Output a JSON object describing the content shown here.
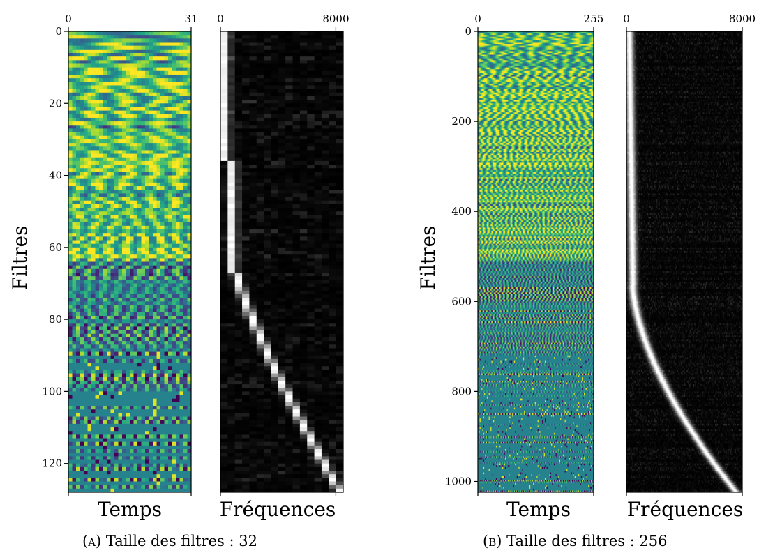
{
  "chart_data": [
    {
      "type": "heatmap",
      "panel": "a",
      "caption_label": "(a)",
      "caption_text": "Taille des filtres : 32",
      "ylabel": "Filtres",
      "y_ticks": [
        0,
        20,
        40,
        60,
        80,
        100,
        120
      ],
      "ylim": [
        0,
        128
      ],
      "subplots": [
        {
          "name": "time",
          "xlabel": "Temps",
          "x_ticks": [
            0,
            31
          ],
          "xlim": [
            0,
            31
          ],
          "colormap": "viridis",
          "cols": 32,
          "rows": 128,
          "mode": "time"
        },
        {
          "name": "freq",
          "xlabel": "Fréquences",
          "x_ticks": [
            0,
            8000
          ],
          "xlim": [
            0,
            8000
          ],
          "colormap": "gray",
          "cols": 17,
          "rows": 128,
          "mode": "freq"
        }
      ]
    },
    {
      "type": "heatmap",
      "panel": "b",
      "caption_label": "(b)",
      "caption_text": "Taille des filtres : 256",
      "ylabel": "Filtres",
      "y_ticks": [
        0,
        200,
        400,
        600,
        800,
        1000
      ],
      "ylim": [
        0,
        1024
      ],
      "subplots": [
        {
          "name": "time",
          "xlabel": "Temps",
          "x_ticks": [
            0,
            255
          ],
          "xlim": [
            0,
            255
          ],
          "colormap": "viridis",
          "cols": 128,
          "rows": 256,
          "mode": "time"
        },
        {
          "name": "freq",
          "xlabel": "Fréquences",
          "x_ticks": [
            0,
            8000
          ],
          "xlim": [
            0,
            8000
          ],
          "colormap": "gray",
          "cols": 128,
          "rows": 256,
          "mode": "freq"
        }
      ]
    }
  ]
}
